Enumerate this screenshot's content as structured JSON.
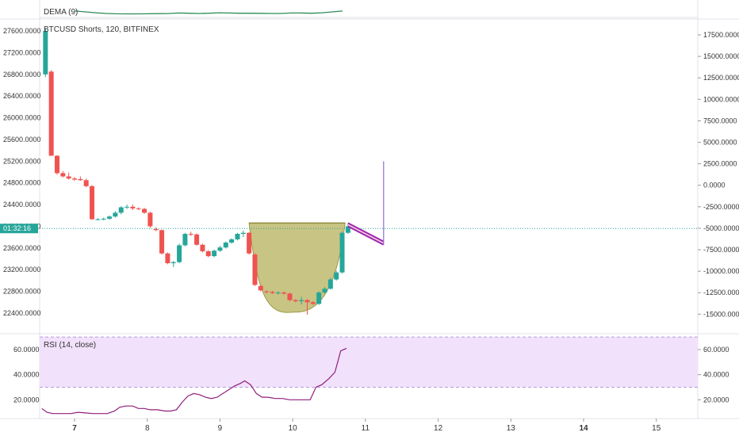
{
  "chart_data": {
    "type": "candlestick",
    "title": "BTCUSD Shorts, 120, BITFINEX",
    "left_axis_ticks": [
      "27600.0000",
      "27200.0000",
      "26800.0000",
      "26400.0000",
      "26000.0000",
      "25600.0000",
      "25200.0000",
      "24800.0000",
      "24400.0000",
      "24000.0000",
      "23600.0000",
      "23200.0000",
      "22800.0000",
      "22400.0000"
    ],
    "right_axis_ticks": [
      "17500.0000",
      "15000.0000",
      "12500.0000",
      "10000.0000",
      "7500.0000",
      "5000.0000",
      "2500.0000",
      "0.0000",
      "-2500.0000",
      "-5000.0000",
      "-7500.0000",
      "-10000.0000",
      "-12500.0000",
      "-15000.0000"
    ],
    "ylim": [
      22020,
      27820
    ],
    "x_ticks": [
      "7",
      "8",
      "9",
      "10",
      "11",
      "12",
      "13",
      "14",
      "15"
    ],
    "xlim": [
      6.52,
      15.57
    ],
    "current_time_label": "01:32:16",
    "current_value": 23960,
    "candles": [
      {
        "t": 6.6,
        "o": 26800,
        "h": 27650,
        "l": 26750,
        "c": 27600
      },
      {
        "t": 6.68,
        "o": 26850,
        "h": 26880,
        "l": 25300,
        "c": 25300
      },
      {
        "t": 6.76,
        "o": 25300,
        "h": 25310,
        "l": 24950,
        "c": 24980
      },
      {
        "t": 6.84,
        "o": 24980,
        "h": 25020,
        "l": 24900,
        "c": 24920
      },
      {
        "t": 6.92,
        "o": 24920,
        "h": 24990,
        "l": 24860,
        "c": 24880
      },
      {
        "t": 7.0,
        "o": 24880,
        "h": 24910,
        "l": 24840,
        "c": 24860
      },
      {
        "t": 7.08,
        "o": 24870,
        "h": 24920,
        "l": 24840,
        "c": 24850
      },
      {
        "t": 7.16,
        "o": 24850,
        "h": 24880,
        "l": 24720,
        "c": 24740
      },
      {
        "t": 7.24,
        "o": 24740,
        "h": 24760,
        "l": 24120,
        "c": 24130
      },
      {
        "t": 7.32,
        "o": 24125,
        "h": 24150,
        "l": 24110,
        "c": 24130
      },
      {
        "t": 7.4,
        "o": 24130,
        "h": 24160,
        "l": 24110,
        "c": 24140
      },
      {
        "t": 7.48,
        "o": 24140,
        "h": 24200,
        "l": 24120,
        "c": 24180
      },
      {
        "t": 7.56,
        "o": 24180,
        "h": 24280,
        "l": 24160,
        "c": 24250
      },
      {
        "t": 7.64,
        "o": 24250,
        "h": 24370,
        "l": 24220,
        "c": 24350
      },
      {
        "t": 7.72,
        "o": 24350,
        "h": 24400,
        "l": 24320,
        "c": 24360
      },
      {
        "t": 7.8,
        "o": 24360,
        "h": 24400,
        "l": 24300,
        "c": 24330
      },
      {
        "t": 7.88,
        "o": 24330,
        "h": 24350,
        "l": 24300,
        "c": 24320
      },
      {
        "t": 7.96,
        "o": 24320,
        "h": 24340,
        "l": 24230,
        "c": 24250
      },
      {
        "t": 8.04,
        "o": 24250,
        "h": 24270,
        "l": 23970,
        "c": 24000
      },
      {
        "t": 8.12,
        "o": 23950,
        "h": 23980,
        "l": 23910,
        "c": 23930
      },
      {
        "t": 8.2,
        "o": 23930,
        "h": 23940,
        "l": 23480,
        "c": 23500
      },
      {
        "t": 8.28,
        "o": 23500,
        "h": 23520,
        "l": 23300,
        "c": 23320
      },
      {
        "t": 8.36,
        "o": 23320,
        "h": 23360,
        "l": 23250,
        "c": 23340
      },
      {
        "t": 8.44,
        "o": 23340,
        "h": 23680,
        "l": 23320,
        "c": 23650
      },
      {
        "t": 8.52,
        "o": 23650,
        "h": 23880,
        "l": 23630,
        "c": 23860
      },
      {
        "t": 8.6,
        "o": 23860,
        "h": 23900,
        "l": 23820,
        "c": 23850
      },
      {
        "t": 8.68,
        "o": 23850,
        "h": 23870,
        "l": 23640,
        "c": 23660
      },
      {
        "t": 8.76,
        "o": 23660,
        "h": 23680,
        "l": 23520,
        "c": 23540
      },
      {
        "t": 8.84,
        "o": 23540,
        "h": 23560,
        "l": 23430,
        "c": 23450
      },
      {
        "t": 8.92,
        "o": 23450,
        "h": 23570,
        "l": 23430,
        "c": 23550
      },
      {
        "t": 9.0,
        "o": 23550,
        "h": 23640,
        "l": 23530,
        "c": 23610
      },
      {
        "t": 9.08,
        "o": 23610,
        "h": 23720,
        "l": 23590,
        "c": 23700
      },
      {
        "t": 9.16,
        "o": 23700,
        "h": 23780,
        "l": 23680,
        "c": 23760
      },
      {
        "t": 9.24,
        "o": 23760,
        "h": 23880,
        "l": 23740,
        "c": 23860
      },
      {
        "t": 9.32,
        "o": 23860,
        "h": 23920,
        "l": 23800,
        "c": 23880
      },
      {
        "t": 9.4,
        "o": 23880,
        "h": 23890,
        "l": 23480,
        "c": 23500
      },
      {
        "t": 9.48,
        "o": 23480,
        "h": 23500,
        "l": 22900,
        "c": 22920
      },
      {
        "t": 9.56,
        "o": 22900,
        "h": 22920,
        "l": 22800,
        "c": 22820
      },
      {
        "t": 9.64,
        "o": 22800,
        "h": 22820,
        "l": 22760,
        "c": 22790
      },
      {
        "t": 9.72,
        "o": 22790,
        "h": 22810,
        "l": 22750,
        "c": 22770
      },
      {
        "t": 9.8,
        "o": 22770,
        "h": 22800,
        "l": 22740,
        "c": 22780
      },
      {
        "t": 9.88,
        "o": 22780,
        "h": 22800,
        "l": 22740,
        "c": 22760
      },
      {
        "t": 9.96,
        "o": 22760,
        "h": 22780,
        "l": 22620,
        "c": 22640
      },
      {
        "t": 10.04,
        "o": 22640,
        "h": 22660,
        "l": 22600,
        "c": 22620
      },
      {
        "t": 10.12,
        "o": 22620,
        "h": 22700,
        "l": 22560,
        "c": 22640
      },
      {
        "t": 10.2,
        "o": 22640,
        "h": 22660,
        "l": 22370,
        "c": 22600
      },
      {
        "t": 10.28,
        "o": 22600,
        "h": 22620,
        "l": 22550,
        "c": 22570
      },
      {
        "t": 10.36,
        "o": 22570,
        "h": 22800,
        "l": 22550,
        "c": 22780
      },
      {
        "t": 10.44,
        "o": 22780,
        "h": 22880,
        "l": 22760,
        "c": 22850
      },
      {
        "t": 10.52,
        "o": 22850,
        "h": 23050,
        "l": 22830,
        "c": 23020
      },
      {
        "t": 10.6,
        "o": 23020,
        "h": 23180,
        "l": 23000,
        "c": 23150
      },
      {
        "t": 10.68,
        "o": 23150,
        "h": 23900,
        "l": 23130,
        "c": 23880
      },
      {
        "t": 10.76,
        "o": 23880,
        "h": 24050,
        "l": 23860,
        "c": 24000
      }
    ],
    "cup_pattern": {
      "rim_left": [
        9.4,
        24060
      ],
      "rim_right": [
        10.72,
        24060
      ],
      "bottom": [
        10.02,
        22420
      ]
    },
    "channel": {
      "from": [
        10.76,
        24000
      ],
      "to": [
        11.25,
        23660
      ],
      "width": 60
    },
    "projection_line": {
      "t": 11.25,
      "from": 23660,
      "to": 25200
    },
    "indicators": {
      "dema": {
        "label": "DEMA (9)",
        "values": [
          0.42,
          0.5,
          0.58,
          0.64,
          0.67,
          0.68,
          0.68,
          0.67,
          0.66,
          0.65,
          0.6,
          0.62,
          0.64,
          0.62,
          0.58,
          0.6,
          0.62,
          0.62,
          0.63,
          0.64,
          0.64,
          0.6,
          0.6,
          0.62,
          0.58,
          0.5,
          0.42
        ]
      },
      "rsi": {
        "label": "RSI (14, close)",
        "ticks_left": [
          "60.0000",
          "40.0000",
          "20.0000"
        ],
        "ticks_right": [
          "60.0000",
          "40.0000",
          "20.0000"
        ],
        "overbought": 70,
        "oversold": 30,
        "ylim": [
          5,
          72
        ],
        "values": [
          [
            6.55,
            13
          ],
          [
            6.62,
            10
          ],
          [
            6.7,
            9
          ],
          [
            6.78,
            9
          ],
          [
            6.86,
            9
          ],
          [
            6.95,
            9
          ],
          [
            7.05,
            10
          ],
          [
            7.15,
            9.5
          ],
          [
            7.25,
            9
          ],
          [
            7.35,
            9
          ],
          [
            7.45,
            9
          ],
          [
            7.55,
            11
          ],
          [
            7.62,
            14
          ],
          [
            7.7,
            15
          ],
          [
            7.8,
            15
          ],
          [
            7.88,
            13
          ],
          [
            7.96,
            13
          ],
          [
            8.04,
            12
          ],
          [
            8.14,
            12
          ],
          [
            8.24,
            11
          ],
          [
            8.32,
            11
          ],
          [
            8.4,
            12
          ],
          [
            8.48,
            18
          ],
          [
            8.56,
            23
          ],
          [
            8.64,
            25
          ],
          [
            8.72,
            24
          ],
          [
            8.8,
            22
          ],
          [
            8.88,
            21
          ],
          [
            8.96,
            22
          ],
          [
            9.04,
            25
          ],
          [
            9.12,
            28
          ],
          [
            9.2,
            31
          ],
          [
            9.28,
            33
          ],
          [
            9.34,
            35
          ],
          [
            9.42,
            32
          ],
          [
            9.5,
            25
          ],
          [
            9.58,
            22
          ],
          [
            9.66,
            22
          ],
          [
            9.76,
            21
          ],
          [
            9.86,
            21
          ],
          [
            9.96,
            20
          ],
          [
            10.06,
            20
          ],
          [
            10.16,
            20
          ],
          [
            10.24,
            20
          ],
          [
            10.32,
            30
          ],
          [
            10.4,
            32
          ],
          [
            10.5,
            37
          ],
          [
            10.58,
            42
          ],
          [
            10.66,
            59
          ],
          [
            10.74,
            61
          ]
        ]
      }
    },
    "colors": {
      "up": "#26a69a",
      "down": "#ef5350",
      "cup_fill": "#b5b05a",
      "channel": "#9c27b0",
      "channel_fill": "#f8bbd0",
      "dema_line": "#2e8b57",
      "rsi_line": "#8e1f7c",
      "rsi_band": "#f1e1fb",
      "current_line": "#26a69a",
      "projection": "#8e6bdb"
    }
  }
}
